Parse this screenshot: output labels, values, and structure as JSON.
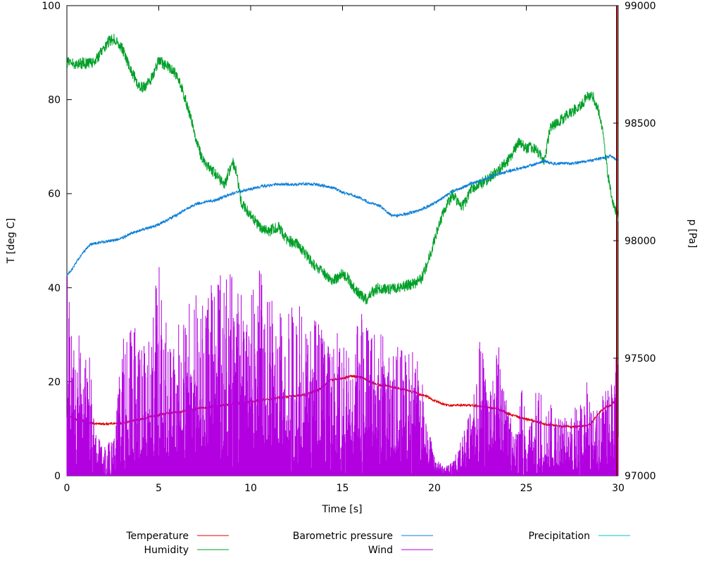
{
  "chart_data": {
    "type": "line",
    "title": "",
    "xlabel": "Time [s]",
    "ylabel_left": "T [deg C]",
    "ylabel_right": "p [Pa]",
    "x_range": [
      0,
      30
    ],
    "y_left_range": [
      0,
      100
    ],
    "y_right_range": [
      97000,
      99000
    ],
    "x_ticks": [
      0,
      5,
      10,
      15,
      20,
      25,
      30
    ],
    "y_left_ticks": [
      0,
      20,
      40,
      60,
      80,
      100
    ],
    "y_right_ticks": [
      97000,
      97500,
      98000,
      98500,
      99000
    ],
    "grid": false,
    "legend_position": "below",
    "frame_color": "#000000",
    "background": "#ffffff",
    "series": [
      {
        "name": "Temperature",
        "color": "#e00000",
        "axis": "left",
        "style": "noisy-line",
        "noise": 0.25,
        "keypoints": [
          [
            0,
            13
          ],
          [
            0.5,
            12
          ],
          [
            1.2,
            11.2
          ],
          [
            2,
            11
          ],
          [
            3,
            11.2
          ],
          [
            4,
            12
          ],
          [
            5,
            13
          ],
          [
            6,
            13.5
          ],
          [
            7,
            14.2
          ],
          [
            8,
            14.8
          ],
          [
            9,
            15.3
          ],
          [
            10,
            15.8
          ],
          [
            11,
            16.3
          ],
          [
            12,
            16.8
          ],
          [
            13,
            17.2
          ],
          [
            13.8,
            18.5
          ],
          [
            14.3,
            20.3
          ],
          [
            15,
            20.8
          ],
          [
            15.5,
            21.2
          ],
          [
            16,
            21
          ],
          [
            16.5,
            20
          ],
          [
            17,
            19.3
          ],
          [
            17.5,
            19
          ],
          [
            18,
            18.6
          ],
          [
            18.5,
            18.2
          ],
          [
            19,
            17.6
          ],
          [
            19.5,
            17
          ],
          [
            20,
            16
          ],
          [
            20.5,
            15.2
          ],
          [
            21,
            14.9
          ],
          [
            21.5,
            15
          ],
          [
            22,
            15
          ],
          [
            22.5,
            14.8
          ],
          [
            23,
            14.4
          ],
          [
            23.5,
            14.2
          ],
          [
            24,
            13.2
          ],
          [
            24.5,
            12.6
          ],
          [
            25,
            12
          ],
          [
            25.5,
            11.5
          ],
          [
            26,
            11
          ],
          [
            26.5,
            10.7
          ],
          [
            27,
            10.5
          ],
          [
            27.5,
            10.4
          ],
          [
            28,
            10.5
          ],
          [
            28.5,
            11
          ],
          [
            29,
            13.5
          ],
          [
            29.3,
            14.5
          ],
          [
            29.6,
            15
          ],
          [
            30,
            16.5
          ]
        ]
      },
      {
        "name": "Humidity",
        "color": "#00a028",
        "axis": "left",
        "style": "noisy-line",
        "noise": 1.2,
        "keypoints": [
          [
            0,
            88
          ],
          [
            0.5,
            87.5
          ],
          [
            1,
            87.8
          ],
          [
            1.5,
            88
          ],
          [
            2,
            91
          ],
          [
            2.3,
            92.5
          ],
          [
            2.6,
            93
          ],
          [
            3,
            91
          ],
          [
            3.5,
            86
          ],
          [
            4,
            82.5
          ],
          [
            4.3,
            83
          ],
          [
            4.7,
            85
          ],
          [
            5,
            88.5
          ],
          [
            5.3,
            87.5
          ],
          [
            5.7,
            86.5
          ],
          [
            6,
            85
          ],
          [
            6.3,
            82
          ],
          [
            6.6,
            78
          ],
          [
            7,
            72
          ],
          [
            7.3,
            68
          ],
          [
            7.6,
            66
          ],
          [
            8,
            64.5
          ],
          [
            8.3,
            63
          ],
          [
            8.6,
            62
          ],
          [
            9,
            67
          ],
          [
            9.2,
            65
          ],
          [
            9.5,
            58
          ],
          [
            10,
            55.5
          ],
          [
            10.5,
            53
          ],
          [
            11,
            52
          ],
          [
            11.5,
            53
          ],
          [
            12,
            50
          ],
          [
            12.5,
            49.5
          ],
          [
            13,
            47
          ],
          [
            13.5,
            44.5
          ],
          [
            14,
            43
          ],
          [
            14.5,
            41.5
          ],
          [
            15,
            43
          ],
          [
            15.3,
            42
          ],
          [
            15.6,
            40
          ],
          [
            16,
            38.5
          ],
          [
            16.3,
            37.5
          ],
          [
            16.6,
            39
          ],
          [
            17,
            40
          ],
          [
            17.5,
            39.5
          ],
          [
            18,
            40
          ],
          [
            18.5,
            40.5
          ],
          [
            19,
            41
          ],
          [
            19.3,
            42
          ],
          [
            19.6,
            45
          ],
          [
            20,
            50
          ],
          [
            20.3,
            54
          ],
          [
            20.6,
            57
          ],
          [
            21,
            60
          ],
          [
            21.3,
            58
          ],
          [
            21.6,
            57.5
          ],
          [
            22,
            61
          ],
          [
            22.5,
            62
          ],
          [
            23,
            63.5
          ],
          [
            23.5,
            65
          ],
          [
            24,
            67
          ],
          [
            24.3,
            69
          ],
          [
            24.6,
            71
          ],
          [
            25,
            69.5
          ],
          [
            25.3,
            70
          ],
          [
            25.6,
            69
          ],
          [
            26,
            67
          ],
          [
            26.3,
            74
          ],
          [
            26.6,
            75
          ],
          [
            27,
            76
          ],
          [
            27.5,
            77.5
          ],
          [
            28,
            79
          ],
          [
            28.3,
            80.5
          ],
          [
            28.6,
            81
          ],
          [
            28.8,
            79
          ],
          [
            29,
            77
          ],
          [
            29.2,
            72
          ],
          [
            29.4,
            65
          ],
          [
            29.6,
            60
          ],
          [
            29.8,
            57
          ],
          [
            30,
            55
          ]
        ]
      },
      {
        "name": "Barometric pressure",
        "color": "#0d7fd6",
        "axis": "right",
        "style": "noisy-line",
        "noise": 6,
        "keypoints": [
          [
            0,
            97855
          ],
          [
            0.3,
            97880
          ],
          [
            0.6,
            97920
          ],
          [
            1,
            97960
          ],
          [
            1.3,
            97985
          ],
          [
            1.6,
            97990
          ],
          [
            2,
            97995
          ],
          [
            2.5,
            98000
          ],
          [
            3,
            98010
          ],
          [
            3.5,
            98030
          ],
          [
            4,
            98045
          ],
          [
            4.5,
            98055
          ],
          [
            5,
            98070
          ],
          [
            5.5,
            98090
          ],
          [
            6,
            98110
          ],
          [
            6.5,
            98135
          ],
          [
            7,
            98155
          ],
          [
            7.5,
            98165
          ],
          [
            8,
            98170
          ],
          [
            8.5,
            98185
          ],
          [
            9,
            98200
          ],
          [
            9.5,
            98210
          ],
          [
            10,
            98220
          ],
          [
            10.5,
            98230
          ],
          [
            11,
            98235
          ],
          [
            11.5,
            98240
          ],
          [
            12,
            98240
          ],
          [
            12.5,
            98238
          ],
          [
            13,
            98242
          ],
          [
            13.5,
            98240
          ],
          [
            14,
            98232
          ],
          [
            14.5,
            98225
          ],
          [
            15,
            98205
          ],
          [
            15.5,
            98195
          ],
          [
            16,
            98180
          ],
          [
            16.5,
            98160
          ],
          [
            17,
            98150
          ],
          [
            17.3,
            98130
          ],
          [
            17.6,
            98110
          ],
          [
            17.9,
            98105
          ],
          [
            18.2,
            98110
          ],
          [
            18.5,
            98115
          ],
          [
            19,
            98125
          ],
          [
            19.5,
            98140
          ],
          [
            20,
            98160
          ],
          [
            20.5,
            98185
          ],
          [
            21,
            98210
          ],
          [
            21.5,
            98225
          ],
          [
            22,
            98245
          ],
          [
            22.5,
            98255
          ],
          [
            23,
            98270
          ],
          [
            23.5,
            98285
          ],
          [
            24,
            98295
          ],
          [
            24.5,
            98305
          ],
          [
            25,
            98315
          ],
          [
            25.5,
            98325
          ],
          [
            26,
            98340
          ],
          [
            26.3,
            98330
          ],
          [
            26.6,
            98327
          ],
          [
            27,
            98330
          ],
          [
            27.5,
            98328
          ],
          [
            28,
            98335
          ],
          [
            28.5,
            98340
          ],
          [
            29,
            98350
          ],
          [
            29.3,
            98355
          ],
          [
            29.6,
            98360
          ],
          [
            30,
            98340
          ]
        ]
      },
      {
        "name": "Wind",
        "color": "#b300e0",
        "axis": "left",
        "style": "impulses",
        "envelope": [
          [
            0,
            48
          ],
          [
            0.3,
            30
          ],
          [
            0.8,
            30
          ],
          [
            1.3,
            25
          ],
          [
            1.6,
            10
          ],
          [
            2,
            6
          ],
          [
            2.5,
            8
          ],
          [
            2.8,
            20
          ],
          [
            3,
            30
          ],
          [
            3.5,
            35
          ],
          [
            4,
            30
          ],
          [
            4.5,
            32
          ],
          [
            5,
            45
          ],
          [
            5.5,
            30
          ],
          [
            6,
            32
          ],
          [
            6.5,
            35
          ],
          [
            7,
            40
          ],
          [
            7.5,
            42
          ],
          [
            8,
            40
          ],
          [
            8.5,
            48
          ],
          [
            9,
            44
          ],
          [
            9.5,
            40
          ],
          [
            10,
            38
          ],
          [
            10.5,
            45
          ],
          [
            11,
            38
          ],
          [
            11.5,
            36
          ],
          [
            12,
            34
          ],
          [
            12.5,
            38
          ],
          [
            13,
            32
          ],
          [
            13.5,
            35
          ],
          [
            14,
            30
          ],
          [
            14.5,
            32
          ],
          [
            15,
            30
          ],
          [
            15.5,
            28
          ],
          [
            16,
            35
          ],
          [
            16.5,
            30
          ],
          [
            17,
            32
          ],
          [
            17.5,
            28
          ],
          [
            18,
            30
          ],
          [
            18.5,
            26
          ],
          [
            19,
            28
          ],
          [
            19.3,
            22
          ],
          [
            19.6,
            12
          ],
          [
            20,
            4
          ],
          [
            20.5,
            2
          ],
          [
            21,
            3
          ],
          [
            21.5,
            8
          ],
          [
            22,
            15
          ],
          [
            22.5,
            30
          ],
          [
            23,
            22
          ],
          [
            23.5,
            28
          ],
          [
            24,
            14
          ],
          [
            24.5,
            10
          ],
          [
            24.8,
            22
          ],
          [
            25,
            8
          ],
          [
            25.3,
            12
          ],
          [
            25.6,
            24
          ],
          [
            26,
            12
          ],
          [
            26.3,
            16
          ],
          [
            26.6,
            14
          ],
          [
            27,
            12
          ],
          [
            27.5,
            14
          ],
          [
            28,
            16
          ],
          [
            28.3,
            20
          ],
          [
            28.6,
            14
          ],
          [
            29,
            16
          ],
          [
            29.3,
            18
          ],
          [
            29.6,
            22
          ],
          [
            30,
            30
          ]
        ]
      },
      {
        "name": "Precipitation",
        "color": "#00c4cc",
        "axis": "left",
        "style": "hidden",
        "keypoints": [
          [
            0,
            0
          ],
          [
            30,
            0
          ]
        ]
      }
    ],
    "annotations": [
      {
        "type": "vline",
        "x": 30,
        "color": "#7f0000"
      }
    ]
  },
  "legend": {
    "entries": [
      {
        "label": "Temperature",
        "row": 0,
        "col": 0
      },
      {
        "label": "Barometric pressure",
        "row": 0,
        "col": 1
      },
      {
        "label": "Precipitation",
        "row": 0,
        "col": 2
      },
      {
        "label": "Humidity",
        "row": 1,
        "col": 0
      },
      {
        "label": "Wind",
        "row": 1,
        "col": 1
      }
    ]
  }
}
